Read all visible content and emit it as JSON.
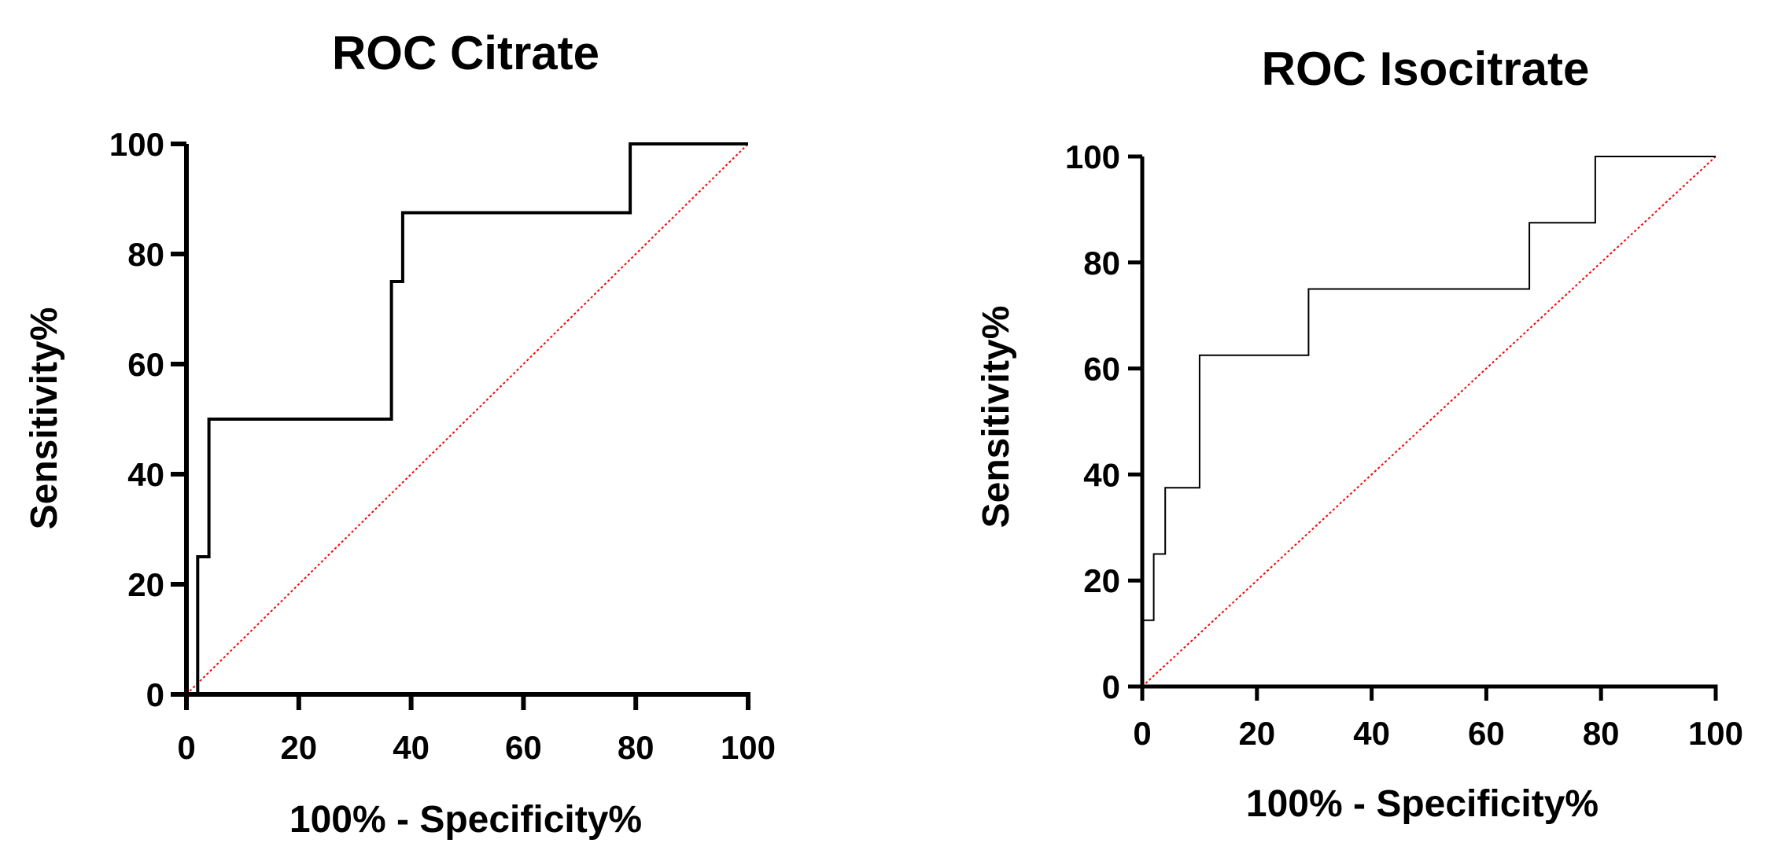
{
  "chart_data": [
    {
      "type": "line",
      "title": "ROC Citrate",
      "xlabel": "100%  - Specificity%",
      "ylabel": "Sensitivity%",
      "xlim": [
        0,
        100
      ],
      "ylim": [
        0,
        100
      ],
      "x_ticks": [
        "0",
        "20",
        "40",
        "60",
        "80",
        "100"
      ],
      "y_ticks": [
        "0",
        "20",
        "40",
        "60",
        "80",
        "100"
      ],
      "series": [
        {
          "name": "ROC curve",
          "color": "#000000",
          "x": [
            2,
            2,
            4,
            4,
            36.5,
            36.5,
            38.5,
            38.5,
            79,
            79,
            100
          ],
          "y": [
            0,
            25,
            25,
            50,
            50,
            75,
            75,
            87.5,
            87.5,
            100,
            100
          ]
        },
        {
          "name": "Reference line",
          "color": "#ff0000",
          "dashed": true,
          "x": [
            0,
            100
          ],
          "y": [
            0,
            100
          ]
        }
      ]
    },
    {
      "type": "line",
      "title": "ROC Isocitrate",
      "xlabel": "100% - Specificity%",
      "ylabel": "Sensitivity%",
      "xlim": [
        0,
        100
      ],
      "ylim": [
        0,
        100
      ],
      "x_ticks": [
        "0",
        "20",
        "40",
        "60",
        "80",
        "100"
      ],
      "y_ticks": [
        "0",
        "20",
        "40",
        "60",
        "80",
        "100"
      ],
      "series": [
        {
          "name": "ROC curve",
          "color": "#000000",
          "x": [
            0,
            0,
            2,
            2,
            4,
            4,
            10,
            10,
            29,
            29,
            67.5,
            67.5,
            79,
            79,
            100
          ],
          "y": [
            0,
            12.5,
            12.5,
            25,
            25,
            37.5,
            37.5,
            62.5,
            62.5,
            75,
            75,
            87.5,
            87.5,
            100,
            100
          ]
        },
        {
          "name": "Reference line",
          "color": "#ff0000",
          "dashed": true,
          "x": [
            0,
            100
          ],
          "y": [
            0,
            100
          ]
        }
      ]
    }
  ]
}
